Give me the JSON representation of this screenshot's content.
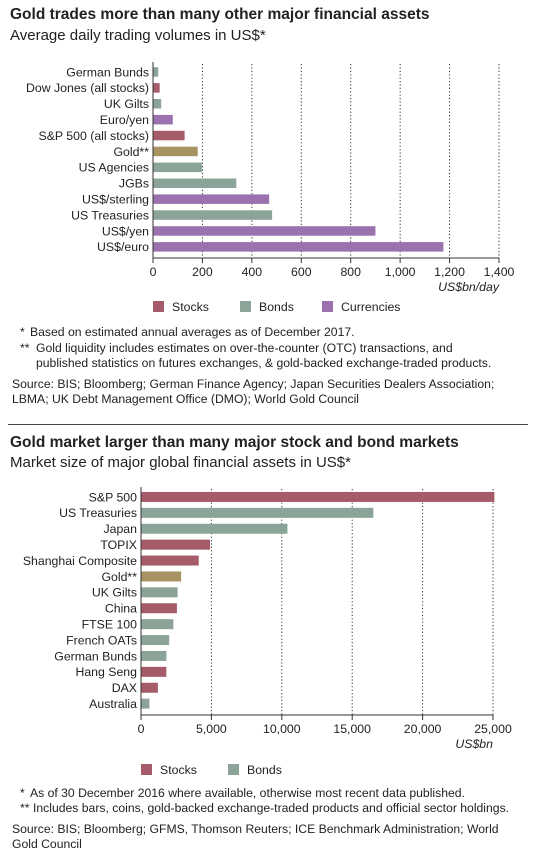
{
  "chart_data": [
    {
      "type": "bar",
      "orientation": "horizontal",
      "title": "Gold trades more than many other major financial assets",
      "subtitle": "Average daily trading volumes in US$*",
      "xlabel": "US$bn/day",
      "xlim": [
        0,
        1400
      ],
      "xticks": [
        0,
        200,
        400,
        600,
        800,
        1000,
        1200,
        1400
      ],
      "xtick_labels": [
        "0",
        "200",
        "400",
        "600",
        "800",
        "1,000",
        "1,200",
        "1,400"
      ],
      "grid": "vertical dotted",
      "legend": [
        "Stocks",
        "Bonds",
        "Currencies"
      ],
      "legend_position": "bottom",
      "categories": [
        "German Bunds",
        "Dow Jones (all stocks)",
        "UK Gilts",
        "Euro/yen",
        "S&P 500 (all stocks)",
        "Gold**",
        "US Agencies",
        "JGBs",
        "US$/sterling",
        "US Treasuries",
        "US$/yen",
        "US$/euro"
      ],
      "values": [
        21,
        27,
        33,
        80,
        128,
        181,
        198,
        337,
        470,
        482,
        900,
        1175
      ],
      "groups": [
        "Bonds",
        "Stocks",
        "Bonds",
        "Currencies",
        "Stocks",
        "Gold",
        "Bonds",
        "Bonds",
        "Currencies",
        "Bonds",
        "Currencies",
        "Currencies"
      ]
    },
    {
      "type": "bar",
      "orientation": "horizontal",
      "title": "Gold market larger than many major stock and bond markets",
      "subtitle": "Market size of major global financial assets in US$*",
      "xlabel": "US$bn",
      "xlim": [
        0,
        25000
      ],
      "xticks": [
        0,
        5000,
        10000,
        15000,
        20000,
        25000
      ],
      "xtick_labels": [
        "0",
        "5,000",
        "10,000",
        "15,000",
        "20,000",
        "25,000"
      ],
      "grid": "vertical dotted",
      "legend": [
        "Stocks",
        "Bonds"
      ],
      "legend_position": "bottom",
      "categories": [
        "S&P 500",
        "US Treasuries",
        "Japan",
        "TOPIX",
        "Shanghai Composite",
        "Gold**",
        "UK Gilts",
        "China",
        "FTSE 100",
        "French OATs",
        "German Bunds",
        "Hang Seng",
        "DAX",
        "Australia"
      ],
      "values": [
        25100,
        16500,
        10400,
        4900,
        4100,
        2850,
        2600,
        2550,
        2300,
        2000,
        1800,
        1800,
        1200,
        600
      ],
      "groups": [
        "Stocks",
        "Bonds",
        "Bonds",
        "Stocks",
        "Stocks",
        "Gold",
        "Bonds",
        "Stocks",
        "Bonds",
        "Bonds",
        "Bonds",
        "Stocks",
        "Stocks",
        "Bonds"
      ]
    }
  ],
  "colors": {
    "Stocks": "#a65c68",
    "Bonds": "#8ba497",
    "Currencies": "#9b72ad",
    "Gold": "#a89463",
    "grid": "#333333",
    "axis": "#333333"
  },
  "panel1": {
    "notes": [
      {
        "marker": "*",
        "text": "Based on estimated annual averages as of December 2017."
      },
      {
        "marker": "**",
        "text": "Gold liquidity includes estimates on over-the-counter (OTC) transactions, and published statistics on futures exchanges, & gold-backed exchange-traded products."
      }
    ],
    "source": "Source: BIS; Bloomberg; German Finance Agency; Japan Securities Dealers Association; LBMA; UK Debt Management Office (DMO); World Gold Council"
  },
  "panel2": {
    "notes": [
      {
        "marker": "*",
        "text": "As of 30 December 2016 where available, otherwise most recent data published."
      },
      {
        "marker": "**",
        "text": "Includes bars, coins, gold-backed exchange-traded products and official sector holdings."
      }
    ],
    "source": "Source: BIS; Bloomberg; GFMS, Thomson Reuters; ICE Benchmark Administration; World Gold Council"
  }
}
